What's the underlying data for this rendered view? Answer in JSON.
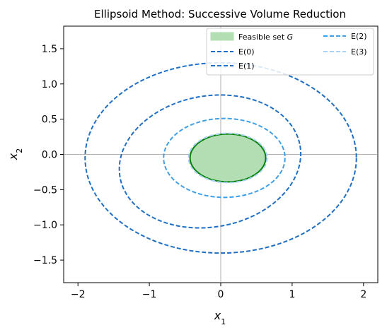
{
  "chart_data": {
    "type": "line",
    "title": "Ellipsoid Method: Successive Volume Reduction",
    "xlabel": "x",
    "xlabel_sub": "1",
    "ylabel": "x",
    "ylabel_sub": "2",
    "xlim": [
      -2.2,
      2.2
    ],
    "ylim": [
      -1.82,
      1.82
    ],
    "xticks": [
      -2,
      -1,
      0,
      1,
      2
    ],
    "xtick_labels": [
      "−2",
      "−1",
      "0",
      "1",
      "2"
    ],
    "yticks": [
      -1.5,
      -1.0,
      -0.5,
      0.0,
      0.5,
      1.0,
      1.5
    ],
    "ytick_labels": [
      "−1.5",
      "−1.0",
      "−0.5",
      "0.0",
      "0.5",
      "1.0",
      "1.5"
    ],
    "crosshair": {
      "x": 0,
      "y": 0
    },
    "grid": false,
    "legend_placement": "top-right",
    "feasible_set": {
      "name": "Feasible set G",
      "name_plain": "Feasible set ",
      "name_italic": "G",
      "center": [
        0.1,
        -0.05
      ],
      "rx": 0.53,
      "ry": 0.34,
      "fill_color": "#b3deb3",
      "edge_color": "#008000"
    },
    "series": [
      {
        "name": "E(0)",
        "center": [
          0.0,
          -0.05
        ],
        "rx": 1.9,
        "ry": 1.35,
        "tilt_deg": 0,
        "color": "#1f6fc5"
      },
      {
        "name": "E(1)",
        "center": [
          -0.15,
          -0.1
        ],
        "rx": 1.28,
        "ry": 0.93,
        "tilt_deg": 10,
        "color": "#1f6fc5"
      },
      {
        "name": "E(2)",
        "center": [
          0.05,
          -0.05
        ],
        "rx": 0.85,
        "ry": 0.56,
        "tilt_deg": 0,
        "color": "#3fa0e8"
      },
      {
        "name": "E(3)",
        "center": [
          0.1,
          -0.05
        ],
        "rx": 0.55,
        "ry": 0.35,
        "tilt_deg": 0,
        "color": "#a9d1f3"
      }
    ],
    "legend_rows": [
      [
        "Feasible set G",
        "E(2)"
      ],
      [
        "E(0)",
        "E(3)"
      ],
      [
        "E(1)",
        ""
      ]
    ]
  }
}
